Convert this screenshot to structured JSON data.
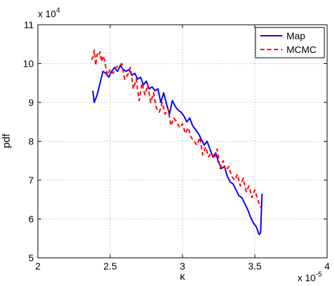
{
  "chart_data": {
    "type": "line",
    "xlabel": "κ",
    "ylabel": "pdf",
    "x_multiplier_label": "x 10",
    "x_multiplier_exp": "-5",
    "y_multiplier_label": "x 10",
    "y_multiplier_exp": "4",
    "xlim": [
      2,
      4
    ],
    "ylim": [
      5,
      11
    ],
    "x_ticks": [
      2,
      2.5,
      3,
      3.5,
      4
    ],
    "x_tick_labels": [
      "2",
      "2.5",
      "3",
      "3.5",
      "4"
    ],
    "y_ticks": [
      5,
      6,
      7,
      8,
      9,
      10,
      11
    ],
    "y_tick_labels": [
      "5",
      "6",
      "7",
      "8",
      "9",
      "10",
      "11"
    ],
    "grid": true,
    "legend_position": "top-right",
    "series": [
      {
        "name": "Map",
        "color": "#0000ff",
        "style": "solid",
        "points": [
          [
            2.38,
            9.3
          ],
          [
            2.39,
            9.0
          ],
          [
            2.41,
            9.2
          ],
          [
            2.43,
            9.5
          ],
          [
            2.45,
            9.8
          ],
          [
            2.47,
            9.75
          ],
          [
            2.49,
            9.65
          ],
          [
            2.51,
            9.8
          ],
          [
            2.53,
            9.9
          ],
          [
            2.55,
            9.8
          ],
          [
            2.57,
            9.95
          ],
          [
            2.59,
            9.85
          ],
          [
            2.61,
            9.8
          ],
          [
            2.63,
            9.85
          ],
          [
            2.65,
            9.7
          ],
          [
            2.67,
            9.75
          ],
          [
            2.69,
            9.6
          ],
          [
            2.71,
            9.65
          ],
          [
            2.73,
            9.45
          ],
          [
            2.75,
            9.55
          ],
          [
            2.77,
            9.35
          ],
          [
            2.79,
            9.4
          ],
          [
            2.81,
            9.3
          ],
          [
            2.83,
            9.35
          ],
          [
            2.85,
            9.0
          ],
          [
            2.87,
            9.25
          ],
          [
            2.89,
            8.95
          ],
          [
            2.91,
            8.7
          ],
          [
            2.93,
            9.05
          ],
          [
            2.95,
            8.9
          ],
          [
            2.97,
            8.8
          ],
          [
            2.99,
            8.75
          ],
          [
            3.01,
            8.65
          ],
          [
            3.03,
            8.5
          ],
          [
            3.05,
            8.6
          ],
          [
            3.07,
            8.4
          ],
          [
            3.09,
            8.3
          ],
          [
            3.11,
            8.2
          ],
          [
            3.13,
            8.05
          ],
          [
            3.15,
            7.9
          ],
          [
            3.17,
            8.0
          ],
          [
            3.19,
            7.8
          ],
          [
            3.21,
            7.6
          ],
          [
            3.23,
            7.7
          ],
          [
            3.25,
            7.45
          ],
          [
            3.27,
            7.3
          ],
          [
            3.29,
            7.35
          ],
          [
            3.31,
            7.1
          ],
          [
            3.33,
            6.95
          ],
          [
            3.35,
            6.9
          ],
          [
            3.37,
            6.75
          ],
          [
            3.39,
            6.6
          ],
          [
            3.41,
            6.55
          ],
          [
            3.43,
            6.4
          ],
          [
            3.45,
            6.25
          ],
          [
            3.47,
            6.05
          ],
          [
            3.49,
            5.9
          ],
          [
            3.51,
            5.8
          ],
          [
            3.53,
            5.6
          ],
          [
            3.54,
            5.65
          ],
          [
            3.55,
            6.65
          ]
        ]
      },
      {
        "name": "MCMC",
        "color": "#ff0000",
        "style": "dashed",
        "points": [
          [
            2.37,
            10.1
          ],
          [
            2.38,
            10.15
          ],
          [
            2.39,
            10.35
          ],
          [
            2.4,
            9.95
          ],
          [
            2.41,
            10.25
          ],
          [
            2.42,
            10.2
          ],
          [
            2.43,
            10.3
          ],
          [
            2.44,
            10.05
          ],
          [
            2.45,
            10.2
          ],
          [
            2.46,
            10.1
          ],
          [
            2.47,
            9.9
          ],
          [
            2.48,
            9.7
          ],
          [
            2.5,
            9.85
          ],
          [
            2.52,
            9.75
          ],
          [
            2.54,
            9.9
          ],
          [
            2.56,
            9.95
          ],
          [
            2.58,
            10.0
          ],
          [
            2.6,
            9.6
          ],
          [
            2.62,
            9.7
          ],
          [
            2.64,
            9.9
          ],
          [
            2.66,
            9.35
          ],
          [
            2.68,
            9.6
          ],
          [
            2.7,
            9.05
          ],
          [
            2.72,
            9.5
          ],
          [
            2.74,
            9.2
          ],
          [
            2.76,
            9.45
          ],
          [
            2.78,
            9.0
          ],
          [
            2.8,
            9.25
          ],
          [
            2.82,
            8.85
          ],
          [
            2.84,
            8.75
          ],
          [
            2.86,
            9.0
          ],
          [
            2.88,
            8.7
          ],
          [
            2.9,
            8.85
          ],
          [
            2.92,
            8.4
          ],
          [
            2.94,
            8.6
          ],
          [
            2.96,
            8.5
          ],
          [
            2.98,
            8.35
          ],
          [
            3.0,
            8.45
          ],
          [
            3.02,
            8.2
          ],
          [
            3.04,
            8.35
          ],
          [
            3.06,
            8.1
          ],
          [
            3.08,
            8.0
          ],
          [
            3.1,
            7.9
          ],
          [
            3.12,
            8.1
          ],
          [
            3.14,
            7.65
          ],
          [
            3.16,
            7.85
          ],
          [
            3.18,
            7.6
          ],
          [
            3.2,
            7.7
          ],
          [
            3.22,
            7.55
          ],
          [
            3.24,
            7.8
          ],
          [
            3.26,
            7.3
          ],
          [
            3.28,
            7.5
          ],
          [
            3.3,
            7.25
          ],
          [
            3.32,
            7.35
          ],
          [
            3.34,
            7.1
          ],
          [
            3.36,
            7.0
          ],
          [
            3.38,
            7.15
          ],
          [
            3.4,
            6.85
          ],
          [
            3.42,
            7.05
          ],
          [
            3.44,
            6.7
          ],
          [
            3.46,
            6.85
          ],
          [
            3.48,
            6.55
          ],
          [
            3.5,
            6.75
          ],
          [
            3.52,
            6.5
          ],
          [
            3.54,
            6.3
          ]
        ]
      }
    ]
  }
}
